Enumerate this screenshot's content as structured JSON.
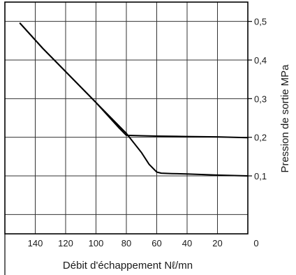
{
  "chart_data": {
    "type": "line",
    "title": "",
    "xlabel": "Débit d'échappement  Nℓ/mn",
    "ylabel": "Pression de sortie  MPa",
    "x_axis": {
      "reversed": true,
      "range": [
        0,
        160
      ],
      "ticks": [
        140,
        120,
        100,
        80,
        60,
        40,
        20,
        0
      ],
      "tick_labels": [
        "140",
        "120",
        "100",
        "80",
        "60",
        "40",
        "20",
        "0"
      ],
      "grid": true
    },
    "y_axis": {
      "range": [
        -0.05,
        0.55
      ],
      "position": "right",
      "ticks": [
        0.5,
        0.4,
        0.3,
        0.2,
        0.1
      ],
      "tick_labels": [
        "0,5",
        "0,4",
        "0,3",
        "0,2",
        "0,1"
      ],
      "grid": true
    },
    "colors": {
      "line": "#000000",
      "grid": "#333333",
      "frame": "#000000"
    },
    "series": [
      {
        "x": [
          150,
          135,
          120,
          100,
          85,
          80,
          70,
          60,
          40,
          20,
          0
        ],
        "y": [
          0.495,
          0.43,
          0.37,
          0.29,
          0.225,
          0.205,
          0.204,
          0.203,
          0.202,
          0.201,
          0.199
        ]
      },
      {
        "x": [
          150,
          135,
          120,
          100,
          80,
          70,
          65,
          60,
          57,
          50,
          40,
          20,
          0
        ],
        "y": [
          0.495,
          0.43,
          0.37,
          0.29,
          0.21,
          0.16,
          0.13,
          0.11,
          0.107,
          0.106,
          0.105,
          0.102,
          0.1
        ]
      }
    ]
  }
}
